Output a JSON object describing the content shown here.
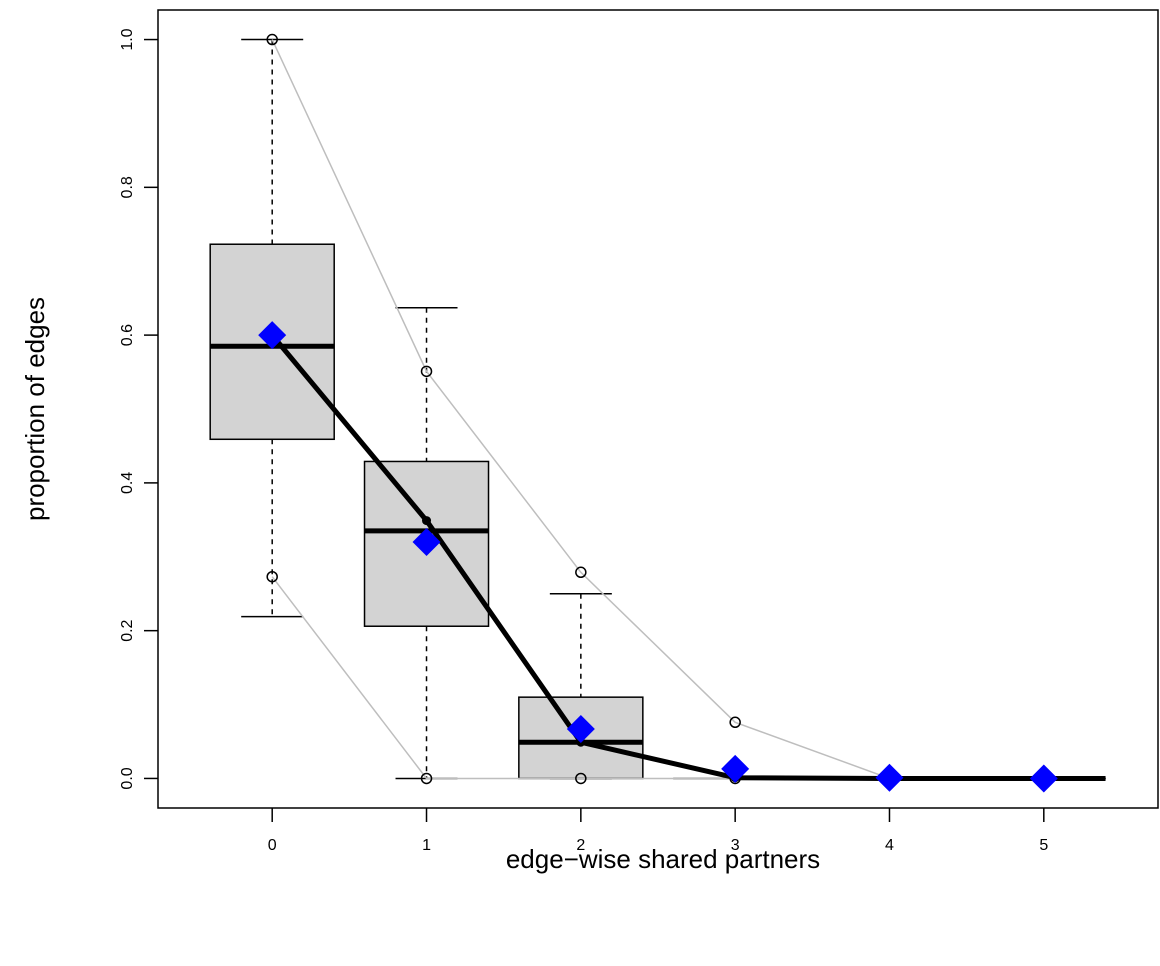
{
  "chart_data": {
    "type": "box",
    "title": "",
    "xlabel": "edge−wise shared partners",
    "ylabel": "proportion of edges",
    "categories": [
      "0",
      "1",
      "2",
      "3",
      "4",
      "5"
    ],
    "x_ticks": [
      "0",
      "1",
      "2",
      "3",
      "4",
      "5"
    ],
    "y_ticks": [
      "0.0",
      "0.2",
      "0.4",
      "0.6",
      "0.8",
      "1.0"
    ],
    "xlim": [
      -0.74,
      5.74
    ],
    "ylim": [
      -0.04,
      1.04
    ],
    "boxes": [
      {
        "x": 0,
        "whisker_low": 0.219,
        "q1": 0.459,
        "median": 0.585,
        "q3": 0.723,
        "whisker_high": 1.0
      },
      {
        "x": 1,
        "whisker_low": 0.0,
        "q1": 0.206,
        "median": 0.335,
        "q3": 0.429,
        "whisker_high": 0.637
      },
      {
        "x": 2,
        "whisker_low": 0.0,
        "q1": 0.0,
        "median": 0.049,
        "q3": 0.11,
        "whisker_high": 0.25
      },
      {
        "x": 3,
        "whisker_low": 0.0,
        "q1": 0.0,
        "median": 0.0,
        "q3": 0.0,
        "whisker_high": 0.0
      },
      {
        "x": 4,
        "whisker_low": 0.0,
        "q1": 0.0,
        "median": 0.0,
        "q3": 0.0,
        "whisker_high": 0.0
      },
      {
        "x": 5,
        "whisker_low": 0.0,
        "q1": 0.0,
        "median": 0.0,
        "q3": 0.0,
        "whisker_high": 0.0
      }
    ],
    "series": [
      {
        "role": "upper-band",
        "x": [
          0,
          1,
          2,
          3,
          4,
          5
        ],
        "values": [
          1.0,
          0.551,
          0.279,
          0.076,
          0.0,
          0.0
        ],
        "color": "#bebebe"
      },
      {
        "role": "lower-band",
        "x": [
          0,
          1,
          2,
          3,
          4,
          5
        ],
        "values": [
          0.273,
          0.0,
          0.0,
          0.0,
          0.0,
          0.0
        ],
        "color": "#bebebe"
      },
      {
        "role": "mean-line",
        "x": [
          0,
          1,
          2,
          3,
          4,
          5,
          5.4
        ],
        "values": [
          0.6,
          0.349,
          0.049,
          0.001,
          0.0,
          0.0,
          0.0
        ],
        "color": "#000000"
      },
      {
        "role": "observed",
        "x": [
          0,
          1,
          2,
          3,
          4,
          5
        ],
        "values": [
          0.6,
          0.32,
          0.067,
          0.013,
          0.001,
          0.0
        ],
        "color": "#0000ff"
      }
    ],
    "grid": false,
    "legend": "none",
    "box_fill": "#d3d3d3"
  }
}
